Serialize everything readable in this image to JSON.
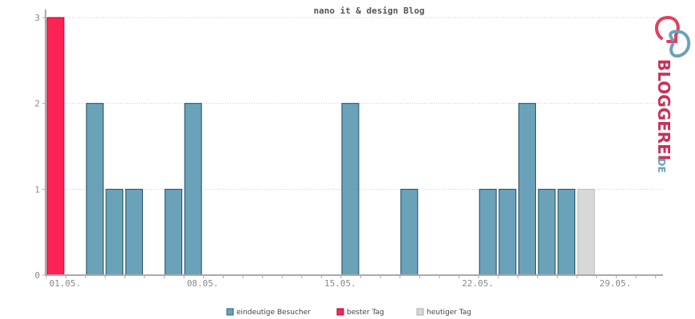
{
  "chart_data": {
    "type": "bar",
    "title": "nano it & design Blog",
    "x_tick_labels": [
      "01.05.",
      "08.05.",
      "15.05.",
      "22.05.",
      "29.05."
    ],
    "y_tick_labels": [
      "0",
      "1",
      "2",
      "3"
    ],
    "ylim": [
      0,
      3
    ],
    "grid": true,
    "legend_placement": "bottom",
    "series": [
      {
        "name": "eindeutige Besucher",
        "color": "#6aa2ba",
        "days": [
          "01.05.",
          "02.05.",
          "03.05.",
          "04.05.",
          "05.05.",
          "06.05.",
          "07.05.",
          "08.05.",
          "09.05.",
          "10.05.",
          "11.05.",
          "12.05.",
          "13.05.",
          "14.05.",
          "15.05.",
          "16.05.",
          "17.05.",
          "18.05.",
          "19.05.",
          "20.05.",
          "21.05.",
          "22.05.",
          "23.05.",
          "24.05.",
          "25.05.",
          "26.05.",
          "27.05.",
          "28.05."
        ],
        "values": [
          3,
          0,
          2,
          1,
          1,
          0,
          1,
          2,
          0,
          0,
          0,
          0,
          0,
          0,
          0,
          2,
          0,
          0,
          1,
          0,
          0,
          0,
          1,
          1,
          2,
          1,
          1,
          1
        ]
      }
    ],
    "highlight": {
      "best_day": {
        "label": "bester Tag",
        "color": "#ff2255",
        "day": "01.05."
      },
      "today": {
        "label": "heutiger Tag",
        "color": "#d8d8d8",
        "day": "28.05."
      }
    }
  },
  "legend": {
    "unique_visitors": "eindeutige Besucher",
    "best_day": "bester Tag",
    "today": "heutiger Tag"
  },
  "logo": {
    "brand": "BLOGGEREI",
    "suffix": ".DE"
  }
}
